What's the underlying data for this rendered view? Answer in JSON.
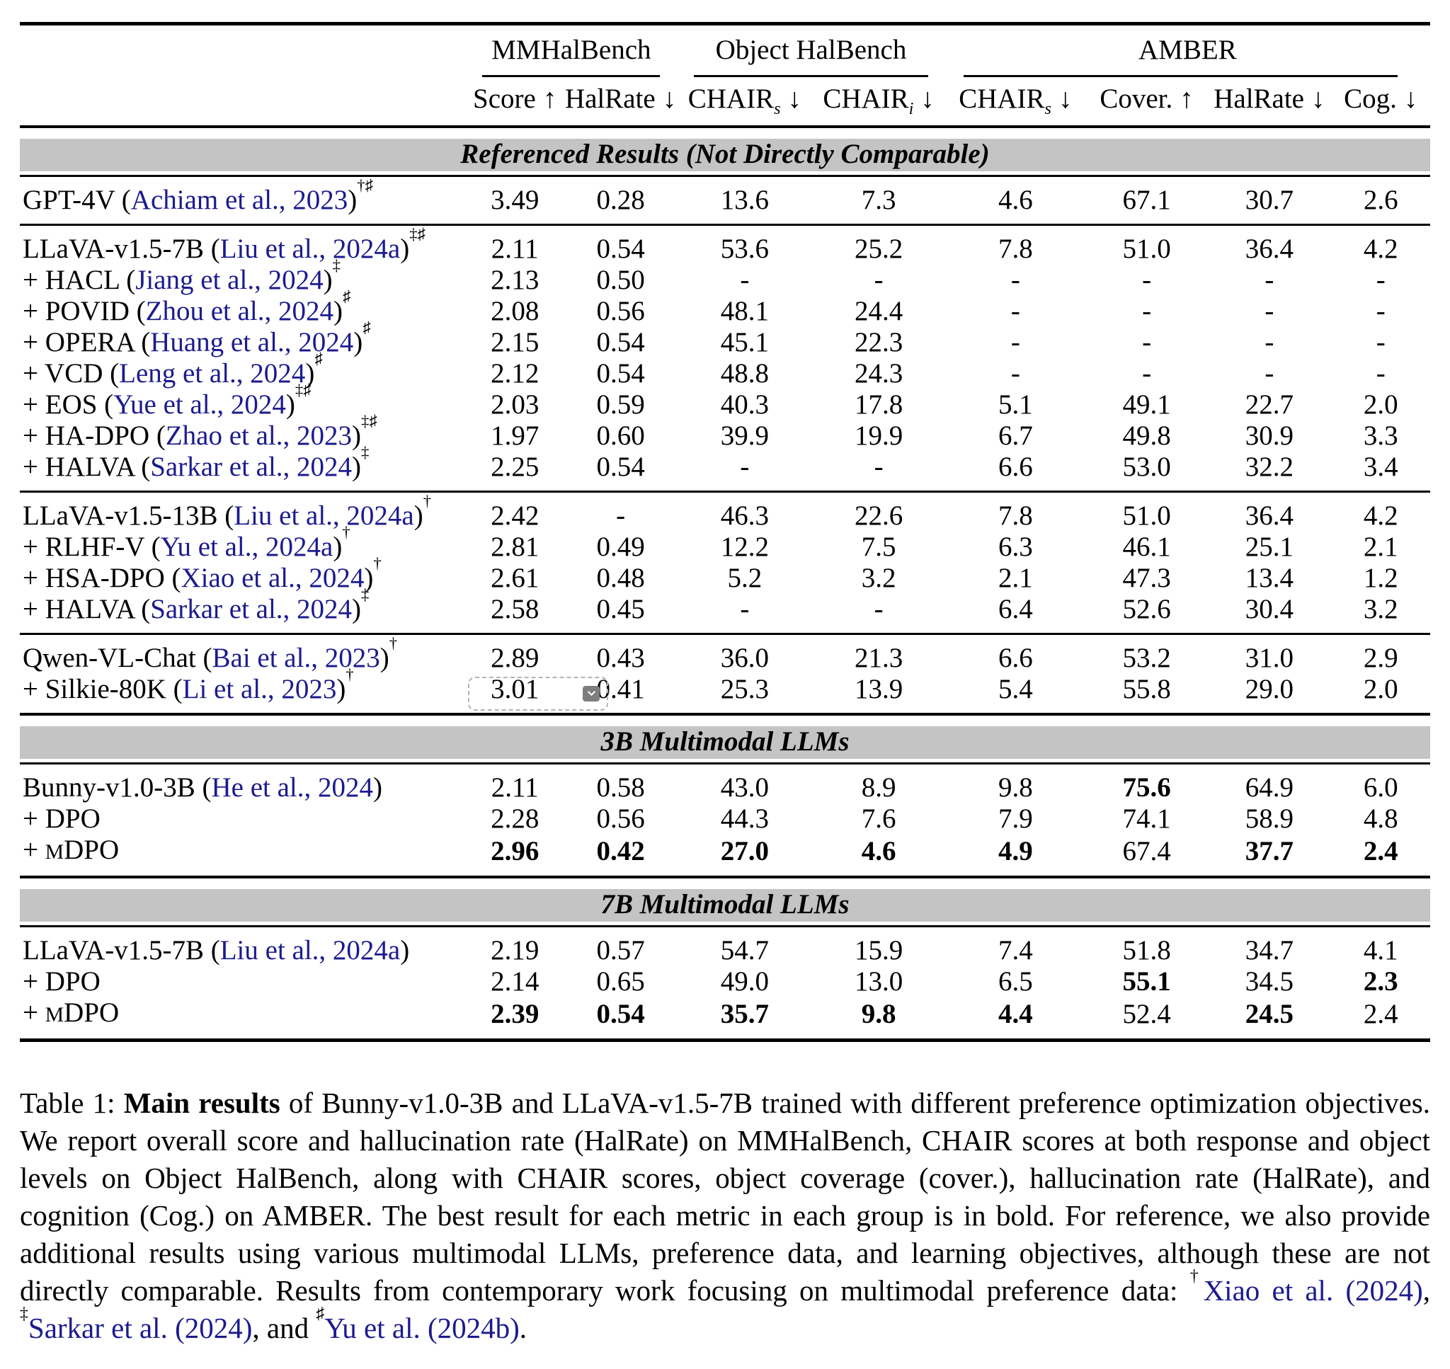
{
  "colors": {
    "citation_blue": "#1b1b8e",
    "section_band_bg": "#c4c4c4"
  },
  "table": {
    "groups": [
      {
        "label": "MMHalBench",
        "span": 2
      },
      {
        "label": "Object HalBench",
        "span": 2
      },
      {
        "label": "AMBER",
        "span": 4
      }
    ],
    "columns": [
      {
        "base": "Score",
        "sub": "",
        "arrow": "↑"
      },
      {
        "base": "HalRate",
        "sub": "",
        "arrow": "↓"
      },
      {
        "base": "CHAIR",
        "sub": "s",
        "arrow": "↓"
      },
      {
        "base": "CHAIR",
        "sub": "i",
        "arrow": "↓"
      },
      {
        "base": "CHAIR",
        "sub": "s",
        "arrow": "↓"
      },
      {
        "base": "Cover.",
        "sub": "",
        "arrow": "↑"
      },
      {
        "base": "HalRate",
        "sub": "",
        "arrow": "↓"
      },
      {
        "base": "Cog.",
        "sub": "",
        "arrow": "↓"
      }
    ],
    "sections": [
      {
        "band": "Referenced Results (Not Directly Comparable)",
        "blocks": [
          [
            {
              "label": "GPT-4V",
              "cite": "Achiam et al., 2023",
              "sup": "†♯",
              "values": [
                "3.49",
                "0.28",
                "13.6",
                "7.3",
                "4.6",
                "67.1",
                "30.7",
                "2.6"
              ],
              "bold": []
            }
          ],
          [
            {
              "label": "LLaVA-v1.5-7B",
              "cite": "Liu et al., 2024a",
              "sup": "‡♯",
              "values": [
                "2.11",
                "0.54",
                "53.6",
                "25.2",
                "7.8",
                "51.0",
                "36.4",
                "4.2"
              ],
              "bold": []
            },
            {
              "label": "+ HACL",
              "cite": "Jiang et al., 2024",
              "sup": "‡",
              "values": [
                "2.13",
                "0.50",
                "-",
                "-",
                "-",
                "-",
                "-",
                "-"
              ],
              "bold": []
            },
            {
              "label": "+ POVID",
              "cite": "Zhou et al., 2024",
              "sup": "♯",
              "values": [
                "2.08",
                "0.56",
                "48.1",
                "24.4",
                "-",
                "-",
                "-",
                "-"
              ],
              "bold": []
            },
            {
              "label": "+ OPERA",
              "cite": "Huang et al., 2024",
              "sup": "♯",
              "values": [
                "2.15",
                "0.54",
                "45.1",
                "22.3",
                "-",
                "-",
                "-",
                "-"
              ],
              "bold": []
            },
            {
              "label": "+ VCD",
              "cite": "Leng et al., 2024",
              "sup": "♯",
              "values": [
                "2.12",
                "0.54",
                "48.8",
                "24.3",
                "-",
                "-",
                "-",
                "-"
              ],
              "bold": []
            },
            {
              "label": "+ EOS",
              "cite": "Yue et al., 2024",
              "sup": "‡♯",
              "values": [
                "2.03",
                "0.59",
                "40.3",
                "17.8",
                "5.1",
                "49.1",
                "22.7",
                "2.0"
              ],
              "bold": []
            },
            {
              "label": "+ HA-DPO",
              "cite": "Zhao et al., 2023",
              "sup": "‡♯",
              "values": [
                "1.97",
                "0.60",
                "39.9",
                "19.9",
                "6.7",
                "49.8",
                "30.9",
                "3.3"
              ],
              "bold": []
            },
            {
              "label": "+ HALVA",
              "cite": "Sarkar et al., 2024",
              "sup": "‡",
              "values": [
                "2.25",
                "0.54",
                "-",
                "-",
                "6.6",
                "53.0",
                "32.2",
                "3.4"
              ],
              "bold": []
            }
          ],
          [
            {
              "label": "LLaVA-v1.5-13B",
              "cite": "Liu et al., 2024a",
              "sup": "†",
              "values": [
                "2.42",
                "-",
                "46.3",
                "22.6",
                "7.8",
                "51.0",
                "36.4",
                "4.2"
              ],
              "bold": []
            },
            {
              "label": "+ RLHF-V",
              "cite": "Yu et al., 2024a",
              "sup": "†",
              "values": [
                "2.81",
                "0.49",
                "12.2",
                "7.5",
                "6.3",
                "46.1",
                "25.1",
                "2.1"
              ],
              "bold": []
            },
            {
              "label": "+ HSA-DPO",
              "cite": "Xiao et al., 2024",
              "sup": "†",
              "values": [
                "2.61",
                "0.48",
                "5.2",
                "3.2",
                "2.1",
                "47.3",
                "13.4",
                "1.2"
              ],
              "bold": []
            },
            {
              "label": "+ HALVA",
              "cite": "Sarkar et al., 2024",
              "sup": "‡",
              "values": [
                "2.58",
                "0.45",
                "-",
                "-",
                "6.4",
                "52.6",
                "30.4",
                "3.2"
              ],
              "bold": []
            }
          ],
          [
            {
              "label": "Qwen-VL-Chat",
              "cite": "Bai et al., 2023",
              "sup": "†",
              "values": [
                "2.89",
                "0.43",
                "36.0",
                "21.3",
                "6.6",
                "53.2",
                "31.0",
                "2.9"
              ],
              "bold": []
            },
            {
              "label": "+ Silkie-80K",
              "cite": "Li et al., 2023",
              "sup": "†",
              "values": [
                "3.01",
                "0.41",
                "25.3",
                "13.9",
                "5.4",
                "55.8",
                "29.0",
                "2.0"
              ],
              "bold": [],
              "selected": 0
            }
          ]
        ]
      },
      {
        "band": "3B Multimodal LLMs",
        "blocks": [
          [
            {
              "label": "Bunny-v1.0-3B",
              "cite": "He et al., 2024",
              "sup": "",
              "values": [
                "2.11",
                "0.58",
                "43.0",
                "8.9",
                "9.8",
                "75.6",
                "64.9",
                "6.0"
              ],
              "bold": [
                5
              ]
            },
            {
              "label": "+ DPO",
              "cite": "",
              "sup": "",
              "values": [
                "2.28",
                "0.56",
                "44.3",
                "7.6",
                "7.9",
                "74.1",
                "58.9",
                "4.8"
              ],
              "bold": []
            },
            {
              "label_parts": [
                {
                  "t": "+ "
                },
                {
                  "t": "M",
                  "sc": true
                },
                {
                  "t": "DPO"
                }
              ],
              "cite": "",
              "sup": "",
              "values": [
                "2.96",
                "0.42",
                "27.0",
                "4.6",
                "4.9",
                "67.4",
                "37.7",
                "2.4"
              ],
              "bold": [
                0,
                1,
                2,
                3,
                4,
                6,
                7
              ]
            }
          ]
        ]
      },
      {
        "band": "7B Multimodal LLMs",
        "blocks": [
          [
            {
              "label": "LLaVA-v1.5-7B",
              "cite": "Liu et al., 2024a",
              "sup": "",
              "values": [
                "2.19",
                "0.57",
                "54.7",
                "15.9",
                "7.4",
                "51.8",
                "34.7",
                "4.1"
              ],
              "bold": []
            },
            {
              "label": "+ DPO",
              "cite": "",
              "sup": "",
              "values": [
                "2.14",
                "0.65",
                "49.0",
                "13.0",
                "6.5",
                "55.1",
                "34.5",
                "2.3"
              ],
              "bold": [
                5,
                7
              ]
            },
            {
              "label_parts": [
                {
                  "t": "+ "
                },
                {
                  "t": "M",
                  "sc": true
                },
                {
                  "t": "DPO"
                }
              ],
              "cite": "",
              "sup": "",
              "values": [
                "2.39",
                "0.54",
                "35.7",
                "9.8",
                "4.4",
                "52.4",
                "24.5",
                "2.4"
              ],
              "bold": [
                0,
                1,
                2,
                3,
                4,
                6
              ]
            }
          ]
        ]
      }
    ]
  },
  "caption": {
    "parts": [
      {
        "t": "Table 1: "
      },
      {
        "t": "Main results",
        "b": true
      },
      {
        "t": " of Bunny-v1.0-3B and LLaVA-v1.5-7B trained with different preference optimization objectives. We report overall score and hallucination rate (HalRate) on MMHalBench, CHAIR scores at both response and object levels on Object HalBench, along with CHAIR scores, object coverage (cover.), hallucination rate (HalRate), and cognition (Cog.) on AMBER. The best result for each metric in each group is in bold. For reference, we also provide additional results using various multimodal LLMs, preference data, and learning objectives, although these are not directly comparable. Results from contemporary work focusing on multimodal preference data: "
      },
      {
        "t": "†",
        "sup": true
      },
      {
        "t": "Xiao et al. (2024)",
        "link": true
      },
      {
        "t": ", "
      },
      {
        "t": "‡",
        "sup": true
      },
      {
        "t": "Sarkar et al. (2024)",
        "link": true
      },
      {
        "t": ", and "
      },
      {
        "t": "♯",
        "sup": true
      },
      {
        "t": "Yu et al. (2024b)",
        "link": true
      },
      {
        "t": "."
      }
    ]
  }
}
